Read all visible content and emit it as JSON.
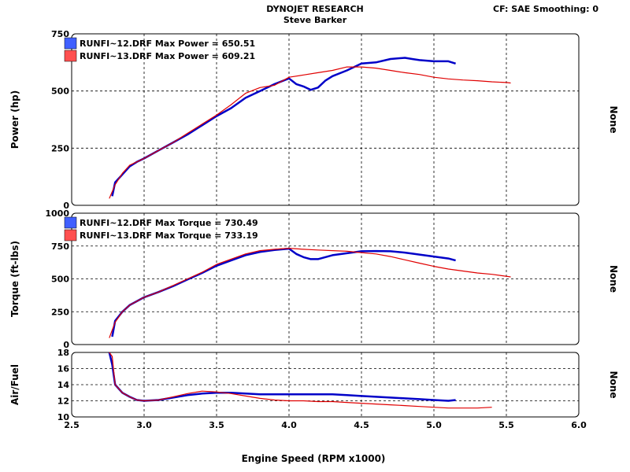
{
  "header": {
    "title": "DYNOJET RESEARCH",
    "subtitle": "Steve Barker",
    "cf_info": "CF: SAE  Smoothing: 0"
  },
  "colors": {
    "run12": "#0000c8",
    "run13": "#e00000"
  },
  "chart_data": [
    {
      "type": "line",
      "panel": "power",
      "ylabel": "Power (hp)",
      "right_label": "None",
      "ylim": [
        0,
        750
      ],
      "yticks": [
        "0",
        "250",
        "500",
        "750"
      ],
      "xlim": [
        2.5,
        6.0
      ],
      "grid": true,
      "legend": [
        "RUNFI~12.DRF Max Power = 650.51",
        "RUNFI~13.DRF Max Power = 609.21"
      ],
      "series": [
        {
          "name": "RUNFI~12.DRF",
          "color": "#0000c8",
          "x": [
            2.78,
            2.8,
            2.85,
            2.9,
            2.95,
            3.0,
            3.1,
            3.2,
            3.3,
            3.4,
            3.5,
            3.6,
            3.7,
            3.8,
            3.9,
            4.0,
            4.05,
            4.1,
            4.15,
            4.2,
            4.25,
            4.3,
            4.4,
            4.5,
            4.6,
            4.7,
            4.8,
            4.85,
            4.9,
            5.0,
            5.1,
            5.15
          ],
          "y": [
            40,
            100,
            135,
            170,
            190,
            205,
            240,
            275,
            310,
            350,
            390,
            425,
            470,
            500,
            530,
            555,
            530,
            520,
            505,
            515,
            545,
            565,
            590,
            620,
            625,
            640,
            645,
            640,
            635,
            630,
            630,
            620
          ]
        },
        {
          "name": "RUNFI~13.DRF",
          "color": "#e00000",
          "x": [
            2.76,
            2.8,
            2.85,
            2.9,
            3.0,
            3.1,
            3.2,
            3.3,
            3.4,
            3.5,
            3.6,
            3.7,
            3.8,
            3.9,
            4.0,
            4.1,
            4.2,
            4.3,
            4.4,
            4.5,
            4.6,
            4.7,
            4.8,
            4.9,
            5.0,
            5.1,
            5.2,
            5.3,
            5.4,
            5.5,
            5.53
          ],
          "y": [
            30,
            90,
            140,
            175,
            205,
            240,
            275,
            315,
            355,
            395,
            440,
            490,
            515,
            525,
            560,
            570,
            580,
            590,
            605,
            605,
            600,
            590,
            580,
            572,
            560,
            553,
            548,
            545,
            540,
            537,
            535
          ]
        }
      ]
    },
    {
      "type": "line",
      "panel": "torque",
      "ylabel": "Torque (ft-lbs)",
      "right_label": "None",
      "ylim": [
        0,
        1000
      ],
      "yticks": [
        "0",
        "250",
        "500",
        "750",
        "1000"
      ],
      "xlim": [
        2.5,
        6.0
      ],
      "grid": true,
      "legend": [
        "RUNFI~12.DRF Max Torque = 730.49",
        "RUNFI~13.DRF Max Torque = 733.19"
      ],
      "series": [
        {
          "name": "RUNFI~12.DRF",
          "color": "#0000c8",
          "x": [
            2.78,
            2.8,
            2.85,
            2.9,
            3.0,
            3.1,
            3.2,
            3.3,
            3.4,
            3.5,
            3.6,
            3.7,
            3.8,
            3.9,
            4.0,
            4.05,
            4.1,
            4.15,
            4.2,
            4.3,
            4.4,
            4.5,
            4.6,
            4.7,
            4.8,
            4.9,
            5.0,
            5.1,
            5.15
          ],
          "y": [
            60,
            180,
            250,
            300,
            360,
            400,
            445,
            495,
            545,
            600,
            640,
            680,
            705,
            720,
            730,
            690,
            665,
            650,
            650,
            680,
            695,
            710,
            712,
            710,
            700,
            685,
            670,
            655,
            640
          ]
        },
        {
          "name": "RUNFI~13.DRF",
          "color": "#e00000",
          "x": [
            2.76,
            2.8,
            2.85,
            2.9,
            3.0,
            3.1,
            3.2,
            3.3,
            3.4,
            3.5,
            3.6,
            3.7,
            3.8,
            3.9,
            4.0,
            4.1,
            4.2,
            4.3,
            4.4,
            4.5,
            4.6,
            4.7,
            4.8,
            4.9,
            5.0,
            5.1,
            5.2,
            5.3,
            5.4,
            5.53
          ],
          "y": [
            50,
            170,
            250,
            300,
            360,
            400,
            450,
            500,
            550,
            610,
            650,
            690,
            715,
            725,
            733,
            725,
            720,
            715,
            710,
            700,
            690,
            670,
            645,
            620,
            595,
            575,
            560,
            545,
            535,
            515
          ]
        }
      ]
    },
    {
      "type": "line",
      "panel": "airfuel",
      "ylabel": "Air/Fuel",
      "right_label": "None",
      "xlabel": "Engine Speed (RPM x1000)",
      "ylim": [
        10,
        18
      ],
      "yticks": [
        "10",
        "12",
        "14",
        "16",
        "18"
      ],
      "xlim": [
        2.5,
        6.0
      ],
      "xticks": [
        "2.5",
        "3.0",
        "3.5",
        "4.0",
        "4.5",
        "5.0",
        "5.5",
        "6.0"
      ],
      "grid": true,
      "series": [
        {
          "name": "RUNFI~12.DRF",
          "color": "#0000c8",
          "x": [
            2.76,
            2.78,
            2.8,
            2.85,
            2.9,
            2.95,
            3.0,
            3.1,
            3.2,
            3.3,
            3.4,
            3.5,
            3.6,
            3.7,
            3.8,
            3.9,
            4.0,
            4.1,
            4.2,
            4.3,
            4.4,
            4.5,
            4.6,
            4.7,
            4.8,
            4.9,
            5.0,
            5.1,
            5.15
          ],
          "y": [
            18,
            16.5,
            14,
            13,
            12.5,
            12.1,
            12.0,
            12.1,
            12.4,
            12.7,
            12.9,
            13.0,
            13.0,
            12.9,
            12.8,
            12.8,
            12.8,
            12.8,
            12.8,
            12.8,
            12.7,
            12.6,
            12.5,
            12.4,
            12.3,
            12.2,
            12.1,
            12.0,
            12.1
          ]
        },
        {
          "name": "RUNFI~13.DRF",
          "color": "#e00000",
          "x": [
            2.76,
            2.78,
            2.8,
            2.85,
            2.9,
            2.95,
            3.0,
            3.1,
            3.2,
            3.3,
            3.4,
            3.5,
            3.6,
            3.7,
            3.8,
            3.9,
            4.0,
            4.1,
            4.2,
            4.3,
            4.4,
            4.5,
            4.6,
            4.7,
            4.8,
            4.9,
            5.0,
            5.1,
            5.2,
            5.3,
            5.4
          ],
          "y": [
            18,
            17.5,
            14,
            13,
            12.5,
            12.1,
            12.0,
            12.1,
            12.5,
            12.9,
            13.2,
            13.1,
            12.9,
            12.6,
            12.3,
            12.1,
            12.0,
            12.0,
            11.9,
            11.9,
            11.8,
            11.7,
            11.6,
            11.5,
            11.4,
            11.3,
            11.2,
            11.1,
            11.1,
            11.1,
            11.2
          ]
        }
      ]
    }
  ]
}
